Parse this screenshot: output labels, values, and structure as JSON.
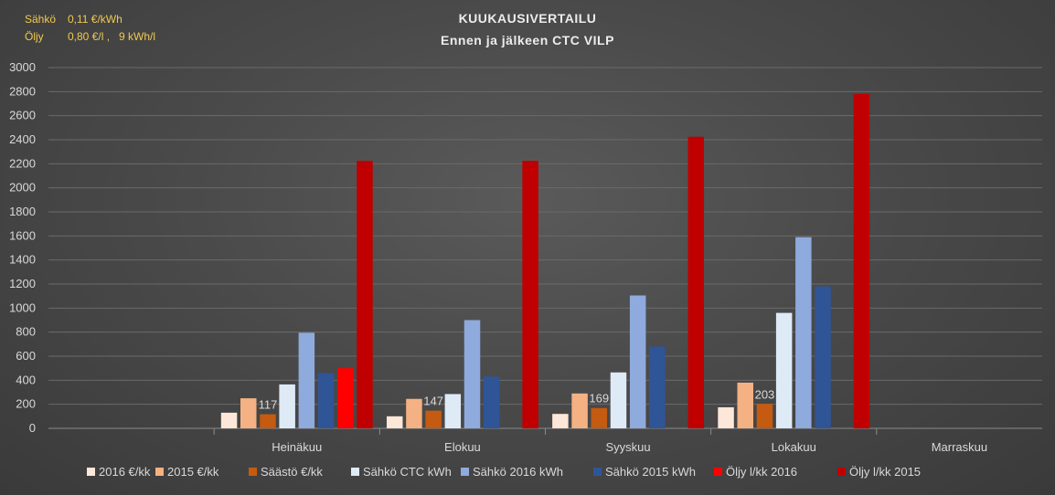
{
  "notes": {
    "line1_label": "Sähkö",
    "line1_value": "0,11 €/kWh",
    "line2_label": "Öljy",
    "line2_value": "0,80 €/l ,   9 kWh/l"
  },
  "colors": {
    "axis_text": "#d9d9d9",
    "grid": "#6a6a6a",
    "note": "#f2c94c"
  },
  "chart_data": {
    "type": "bar",
    "title": "KUUKAUSIVERTAILU",
    "subtitle": "Ennen ja jälkeen CTC VILP",
    "ylim": [
      0,
      3000
    ],
    "ytick_step": 200,
    "yticks": [
      "0",
      "200",
      "400",
      "600",
      "800",
      "1000",
      "1200",
      "1400",
      "1600",
      "1800",
      "2000",
      "2200",
      "2400",
      "2600",
      "2800",
      "3000"
    ],
    "categories": [
      "",
      "Heinäkuu",
      "Elokuu",
      "Syyskuu",
      "Lokakuu",
      "Marraskuu"
    ],
    "legend_position": "bottom",
    "grid": true,
    "series": [
      {
        "name": "2016 €/kk",
        "color": "#fde7d9",
        "values": [
          null,
          130,
          100,
          120,
          175,
          null
        ]
      },
      {
        "name": "2015 €/kk",
        "color": "#f4b183",
        "values": [
          null,
          250,
          245,
          290,
          380,
          null
        ]
      },
      {
        "name": "Säästö €/kk",
        "color": "#c55a11",
        "values": [
          null,
          117,
          147,
          169,
          203,
          null
        ],
        "labels": [
          "",
          "117",
          "147",
          "169",
          "203",
          ""
        ]
      },
      {
        "name": "Sähkö CTC kWh",
        "color": "#deebf7",
        "values": [
          null,
          365,
          285,
          465,
          960,
          null
        ]
      },
      {
        "name": "Sähkö 2016 kWh",
        "color": "#8faadc",
        "values": [
          null,
          795,
          900,
          1105,
          1590,
          null
        ]
      },
      {
        "name": "Sähkö 2015 kWh",
        "color": "#2f5597",
        "values": [
          null,
          460,
          430,
          680,
          1180,
          null
        ]
      },
      {
        "name": "Öljy l/kk 2016",
        "color": "#ff0000",
        "values": [
          null,
          500,
          null,
          null,
          null,
          null
        ]
      },
      {
        "name": "Öljy l/kk 2015",
        "color": "#c00000",
        "values": [
          null,
          2225,
          2225,
          2425,
          2780,
          null
        ]
      }
    ]
  }
}
